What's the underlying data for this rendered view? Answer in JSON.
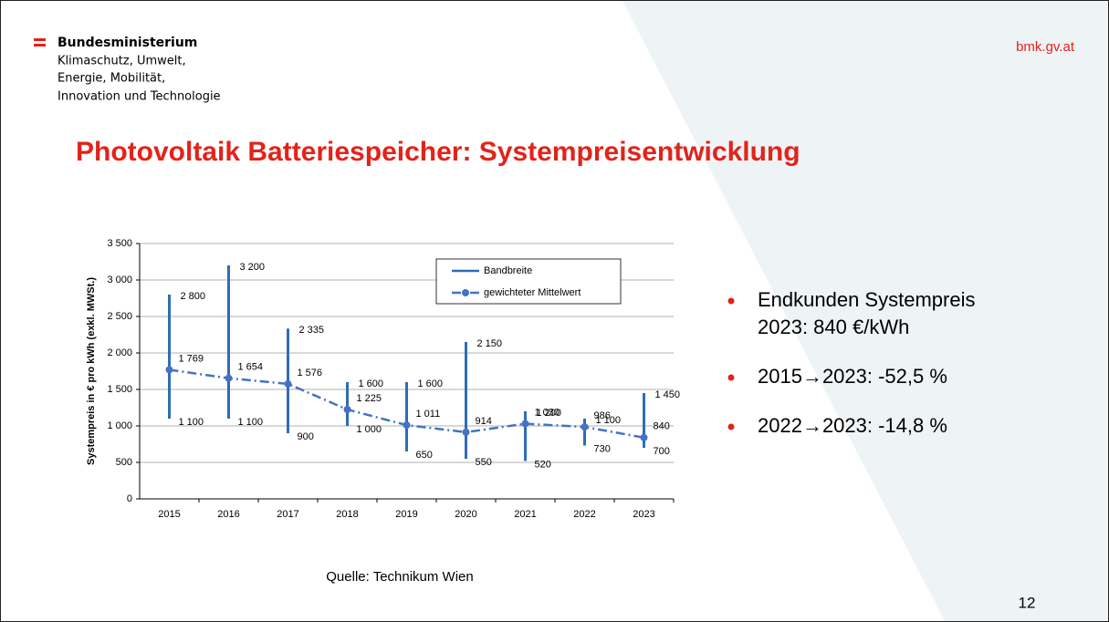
{
  "header": {
    "ministry": [
      "Bundesministerium",
      "Klimaschutz, Umwelt,",
      "Energie, Mobilität,",
      "Innovation und Technologie"
    ],
    "site": "bmk.gv.at"
  },
  "title": "Photovoltaik Batteriespeicher: Systempreisentwicklung",
  "chart_data": {
    "type": "range_line",
    "categories": [
      "2015",
      "2016",
      "2017",
      "2018",
      "2019",
      "2020",
      "2021",
      "2022",
      "2023"
    ],
    "y_label": "Systempreis in € pro kWh  (exkl. MWSt.)",
    "ylim": [
      0,
      3500
    ],
    "yticks": [
      0,
      500,
      {
        "value": 1000,
        "label": "1 000"
      },
      {
        "value": 1500,
        "label": "1 500"
      },
      {
        "value": 2000,
        "label": "2 000"
      },
      {
        "value": 2500,
        "label": "2 500"
      },
      {
        "value": 3000,
        "label": "3 000"
      },
      {
        "value": 3500,
        "label": "3 500"
      }
    ],
    "grid": true,
    "series": [
      {
        "name": "Bandbreite",
        "color": "#2e6db4",
        "min": [
          1100,
          1100,
          900,
          1000,
          650,
          550,
          520,
          730,
          700
        ],
        "min_labels": [
          "1 100",
          "1 100",
          "900",
          "1 000",
          "650",
          "550",
          "520",
          "730",
          "700"
        ],
        "max": [
          2800,
          3200,
          2335,
          1600,
          1600,
          2150,
          1200,
          1100,
          1450
        ],
        "max_labels": [
          "2 800",
          "3 200",
          "2 335",
          "1 600",
          "1 600",
          "2 150",
          "1 200",
          "1 100",
          "1 450"
        ]
      },
      {
        "name": "gewichteter Mittelwert",
        "color": "#4472c4",
        "values": [
          1769,
          1654,
          1576,
          1225,
          1011,
          914,
          1030,
          986,
          840
        ],
        "value_labels": [
          "1 769",
          "1 654",
          "1 576",
          "1 225",
          "1 011",
          "914",
          "1 030",
          "986",
          "840"
        ]
      }
    ]
  },
  "bullets": [
    [
      "Endkunden Systempreis",
      "2023: 840 €/kWh"
    ],
    [
      "2015→2023: -52,5 %"
    ],
    [
      "2022→2023: -14,8 %"
    ]
  ],
  "source": "Quelle: Technikum Wien",
  "page_number": "12"
}
